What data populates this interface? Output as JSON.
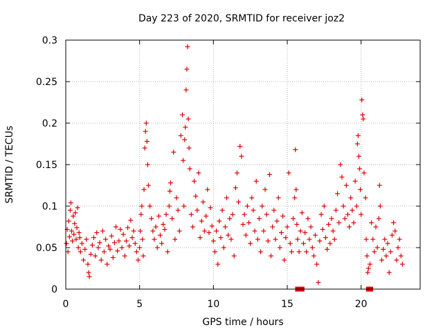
{
  "chart_data": {
    "type": "scatter",
    "title": "Day 223 of 2020, SRMTID for receiver joz2",
    "xlabel": "GPS time / hours",
    "ylabel": "SRMTID / TECUs",
    "xlim": [
      0,
      24
    ],
    "ylim": [
      0,
      0.3
    ],
    "xticks": [
      0,
      5,
      10,
      15,
      20
    ],
    "yticks": [
      0,
      0.05,
      0.1,
      0.15,
      0.2,
      0.25,
      0.3
    ],
    "ytick_labels": [
      "0",
      "0.05",
      "0.1",
      "0.15",
      "0.2",
      "0.25",
      "0.3"
    ],
    "grid": true,
    "marker": "plus",
    "color": "#dd0000",
    "series": [
      {
        "name": "SRMTID",
        "points": [
          [
            0.05,
            0.055
          ],
          [
            0.1,
            0.072
          ],
          [
            0.15,
            0.045
          ],
          [
            0.2,
            0.082
          ],
          [
            0.25,
            0.063
          ],
          [
            0.3,
            0.095
          ],
          [
            0.35,
            0.104
          ],
          [
            0.4,
            0.07
          ],
          [
            0.45,
            0.058
          ],
          [
            0.5,
            0.088
          ],
          [
            0.55,
            0.066
          ],
          [
            0.6,
            0.079
          ],
          [
            0.65,
            0.092
          ],
          [
            0.7,
            0.06
          ],
          [
            0.75,
            0.074
          ],
          [
            0.8,
            0.098
          ],
          [
            0.85,
            0.05
          ],
          [
            0.9,
            0.068
          ],
          [
            0.95,
            0.062
          ],
          [
            1.0,
            0.045
          ],
          [
            1.1,
            0.055
          ],
          [
            1.2,
            0.035
          ],
          [
            1.3,
            0.048
          ],
          [
            1.4,
            0.06
          ],
          [
            1.5,
            0.03
          ],
          [
            1.55,
            0.02
          ],
          [
            1.6,
            0.015
          ],
          [
            1.7,
            0.042
          ],
          [
            1.8,
            0.053
          ],
          [
            1.9,
            0.062
          ],
          [
            2.0,
            0.04
          ],
          [
            2.1,
            0.068
          ],
          [
            2.2,
            0.05
          ],
          [
            2.3,
            0.056
          ],
          [
            2.4,
            0.035
          ],
          [
            2.5,
            0.07
          ],
          [
            2.6,
            0.045
          ],
          [
            2.7,
            0.06
          ],
          [
            2.8,
            0.03
          ],
          [
            2.9,
            0.052
          ],
          [
            3.0,
            0.048
          ],
          [
            3.1,
            0.064
          ],
          [
            3.2,
            0.038
          ],
          [
            3.3,
            0.056
          ],
          [
            3.4,
            0.075
          ],
          [
            3.5,
            0.046
          ],
          [
            3.6,
            0.058
          ],
          [
            3.7,
            0.072
          ],
          [
            3.8,
            0.05
          ],
          [
            3.9,
            0.066
          ],
          [
            4.0,
            0.04
          ],
          [
            4.1,
            0.058
          ],
          [
            4.2,
            0.074
          ],
          [
            4.3,
            0.052
          ],
          [
            4.4,
            0.083
          ],
          [
            4.5,
            0.062
          ],
          [
            4.6,
            0.07
          ],
          [
            4.7,
            0.055
          ],
          [
            4.8,
            0.045
          ],
          [
            4.9,
            0.035
          ],
          [
            5.0,
            0.05
          ],
          [
            5.05,
            0.07
          ],
          [
            5.1,
            0.09
          ],
          [
            5.15,
            0.1
          ],
          [
            5.2,
            0.06
          ],
          [
            5.25,
            0.04
          ],
          [
            5.3,
            0.12
          ],
          [
            5.35,
            0.17
          ],
          [
            5.4,
            0.19
          ],
          [
            5.45,
            0.2
          ],
          [
            5.5,
            0.178
          ],
          [
            5.55,
            0.15
          ],
          [
            5.6,
            0.125
          ],
          [
            5.7,
            0.1
          ],
          [
            5.8,
            0.085
          ],
          [
            5.9,
            0.07
          ],
          [
            6.0,
            0.06
          ],
          [
            6.1,
            0.075
          ],
          [
            6.2,
            0.05
          ],
          [
            6.3,
            0.088
          ],
          [
            6.4,
            0.065
          ],
          [
            6.5,
            0.055
          ],
          [
            6.6,
            0.078
          ],
          [
            6.7,
            0.072
          ],
          [
            6.8,
            0.09
          ],
          [
            6.9,
            0.045
          ],
          [
            7.0,
            0.1
          ],
          [
            7.05,
            0.118
          ],
          [
            7.1,
            0.128
          ],
          [
            7.2,
            0.085
          ],
          [
            7.3,
            0.165
          ],
          [
            7.4,
            0.06
          ],
          [
            7.5,
            0.11
          ],
          [
            7.6,
            0.095
          ],
          [
            7.7,
            0.07
          ],
          [
            7.8,
            0.185
          ],
          [
            7.9,
            0.21
          ],
          [
            7.95,
            0.155
          ],
          [
            8.0,
            0.1
          ],
          [
            8.05,
            0.18
          ],
          [
            8.1,
            0.195
          ],
          [
            8.15,
            0.24
          ],
          [
            8.2,
            0.265
          ],
          [
            8.25,
            0.292
          ],
          [
            8.3,
            0.205
          ],
          [
            8.35,
            0.17
          ],
          [
            8.4,
            0.145
          ],
          [
            8.5,
            0.09
          ],
          [
            8.6,
            0.075
          ],
          [
            8.7,
            0.13
          ],
          [
            8.8,
            0.112
          ],
          [
            8.9,
            0.095
          ],
          [
            9.0,
            0.14
          ],
          [
            9.1,
            0.062
          ],
          [
            9.2,
            0.082
          ],
          [
            9.3,
            0.105
          ],
          [
            9.4,
            0.07
          ],
          [
            9.5,
            0.088
          ],
          [
            9.6,
            0.12
          ],
          [
            9.7,
            0.068
          ],
          [
            9.8,
            0.098
          ],
          [
            9.9,
            0.076
          ],
          [
            10.0,
            0.058
          ],
          [
            10.1,
            0.045
          ],
          [
            10.2,
            0.07
          ],
          [
            10.3,
            0.03
          ],
          [
            10.4,
            0.082
          ],
          [
            10.5,
            0.062
          ],
          [
            10.6,
            0.095
          ],
          [
            10.7,
            0.05
          ],
          [
            10.8,
            0.075
          ],
          [
            10.9,
            0.11
          ],
          [
            11.0,
            0.065
          ],
          [
            11.1,
            0.085
          ],
          [
            11.2,
            0.06
          ],
          [
            11.3,
            0.09
          ],
          [
            11.4,
            0.04
          ],
          [
            11.5,
            0.122
          ],
          [
            11.6,
            0.14
          ],
          [
            11.7,
            0.105
          ],
          [
            11.8,
            0.172
          ],
          [
            11.9,
            0.16
          ],
          [
            12.0,
            0.078
          ],
          [
            12.1,
            0.09
          ],
          [
            12.2,
            0.065
          ],
          [
            12.3,
            0.1
          ],
          [
            12.4,
            0.08
          ],
          [
            12.5,
            0.055
          ],
          [
            12.6,
            0.11
          ],
          [
            12.7,
            0.095
          ],
          [
            12.8,
            0.07
          ],
          [
            12.9,
            0.13
          ],
          [
            13.0,
            0.06
          ],
          [
            13.1,
            0.085
          ],
          [
            13.2,
            0.045
          ],
          [
            13.3,
            0.1
          ],
          [
            13.4,
            0.07
          ],
          [
            13.5,
            0.12
          ],
          [
            13.6,
            0.09
          ],
          [
            13.7,
            0.058
          ],
          [
            13.8,
            0.138
          ],
          [
            13.9,
            0.04
          ],
          [
            14.0,
            0.075
          ],
          [
            14.1,
            0.095
          ],
          [
            14.2,
            0.06
          ],
          [
            14.3,
            0.082
          ],
          [
            14.4,
            0.11
          ],
          [
            14.5,
            0.05
          ],
          [
            14.6,
            0.068
          ],
          [
            14.7,
            0.088
          ],
          [
            14.8,
            0.035
          ],
          [
            14.9,
            0.062
          ],
          [
            15.0,
            0.075
          ],
          [
            15.1,
            0.14
          ],
          [
            15.2,
            0.055
          ],
          [
            15.3,
            0.045
          ],
          [
            15.4,
            0.085
          ],
          [
            15.5,
            0.11
          ],
          [
            15.55,
            0.168
          ],
          [
            15.6,
            0.12
          ],
          [
            15.65,
            0.078
          ],
          [
            15.7,
            0.06
          ],
          [
            15.8,
            0.045
          ],
          [
            15.9,
            0.07
          ],
          [
            16.0,
            0.092
          ],
          [
            16.1,
            0.055
          ],
          [
            16.2,
            0.068
          ],
          [
            16.3,
            0.045
          ],
          [
            16.4,
            0.085
          ],
          [
            16.5,
            0.06
          ],
          [
            16.6,
            0.075
          ],
          [
            16.7,
            0.05
          ],
          [
            16.8,
            0.04
          ],
          [
            16.9,
            0.065
          ],
          [
            17.0,
            0.03
          ],
          [
            17.1,
            0.008
          ],
          [
            17.2,
            0.058
          ],
          [
            17.3,
            0.09
          ],
          [
            17.4,
            0.072
          ],
          [
            17.5,
            0.1
          ],
          [
            17.6,
            0.062
          ],
          [
            17.7,
            0.048
          ],
          [
            17.8,
            0.078
          ],
          [
            17.9,
            0.055
          ],
          [
            18.0,
            0.085
          ],
          [
            18.1,
            0.07
          ],
          [
            18.2,
            0.06
          ],
          [
            18.3,
            0.095
          ],
          [
            18.4,
            0.115
          ],
          [
            18.5,
            0.08
          ],
          [
            18.6,
            0.15
          ],
          [
            18.7,
            0.135
          ],
          [
            18.8,
            0.1
          ],
          [
            18.9,
            0.085
          ],
          [
            19.0,
            0.125
          ],
          [
            19.1,
            0.09
          ],
          [
            19.2,
            0.075
          ],
          [
            19.3,
            0.11
          ],
          [
            19.4,
            0.095
          ],
          [
            19.5,
            0.08
          ],
          [
            19.6,
            0.13
          ],
          [
            19.7,
            0.1
          ],
          [
            19.75,
            0.175
          ],
          [
            19.8,
            0.185
          ],
          [
            19.85,
            0.16
          ],
          [
            19.9,
            0.145
          ],
          [
            19.95,
            0.12
          ],
          [
            20.0,
            0.09
          ],
          [
            20.05,
            0.228
          ],
          [
            20.1,
            0.21
          ],
          [
            20.15,
            0.205
          ],
          [
            20.2,
            0.14
          ],
          [
            20.3,
            0.11
          ],
          [
            20.35,
            0.06
          ],
          [
            20.4,
            0.04
          ],
          [
            20.45,
            0.02
          ],
          [
            20.5,
            0.025
          ],
          [
            20.6,
            0.03
          ],
          [
            20.7,
            0.08
          ],
          [
            20.8,
            0.06
          ],
          [
            20.9,
            0.045
          ],
          [
            21.0,
            0.075
          ],
          [
            21.1,
            0.05
          ],
          [
            21.2,
            0.085
          ],
          [
            21.25,
            0.125
          ],
          [
            21.3,
            0.1
          ],
          [
            21.4,
            0.035
          ],
          [
            21.5,
            0.048
          ],
          [
            21.6,
            0.06
          ],
          [
            21.7,
            0.04
          ],
          [
            21.8,
            0.055
          ],
          [
            21.9,
            0.02
          ],
          [
            22.0,
            0.045
          ],
          [
            22.1,
            0.065
          ],
          [
            22.2,
            0.08
          ],
          [
            22.3,
            0.07
          ],
          [
            22.4,
            0.035
          ],
          [
            22.5,
            0.05
          ],
          [
            22.6,
            0.06
          ],
          [
            22.7,
            0.04
          ],
          [
            22.8,
            0.03
          ]
        ]
      }
    ],
    "zero_markers_x": [
      15.7,
      16.0,
      20.5,
      20.65
    ]
  }
}
